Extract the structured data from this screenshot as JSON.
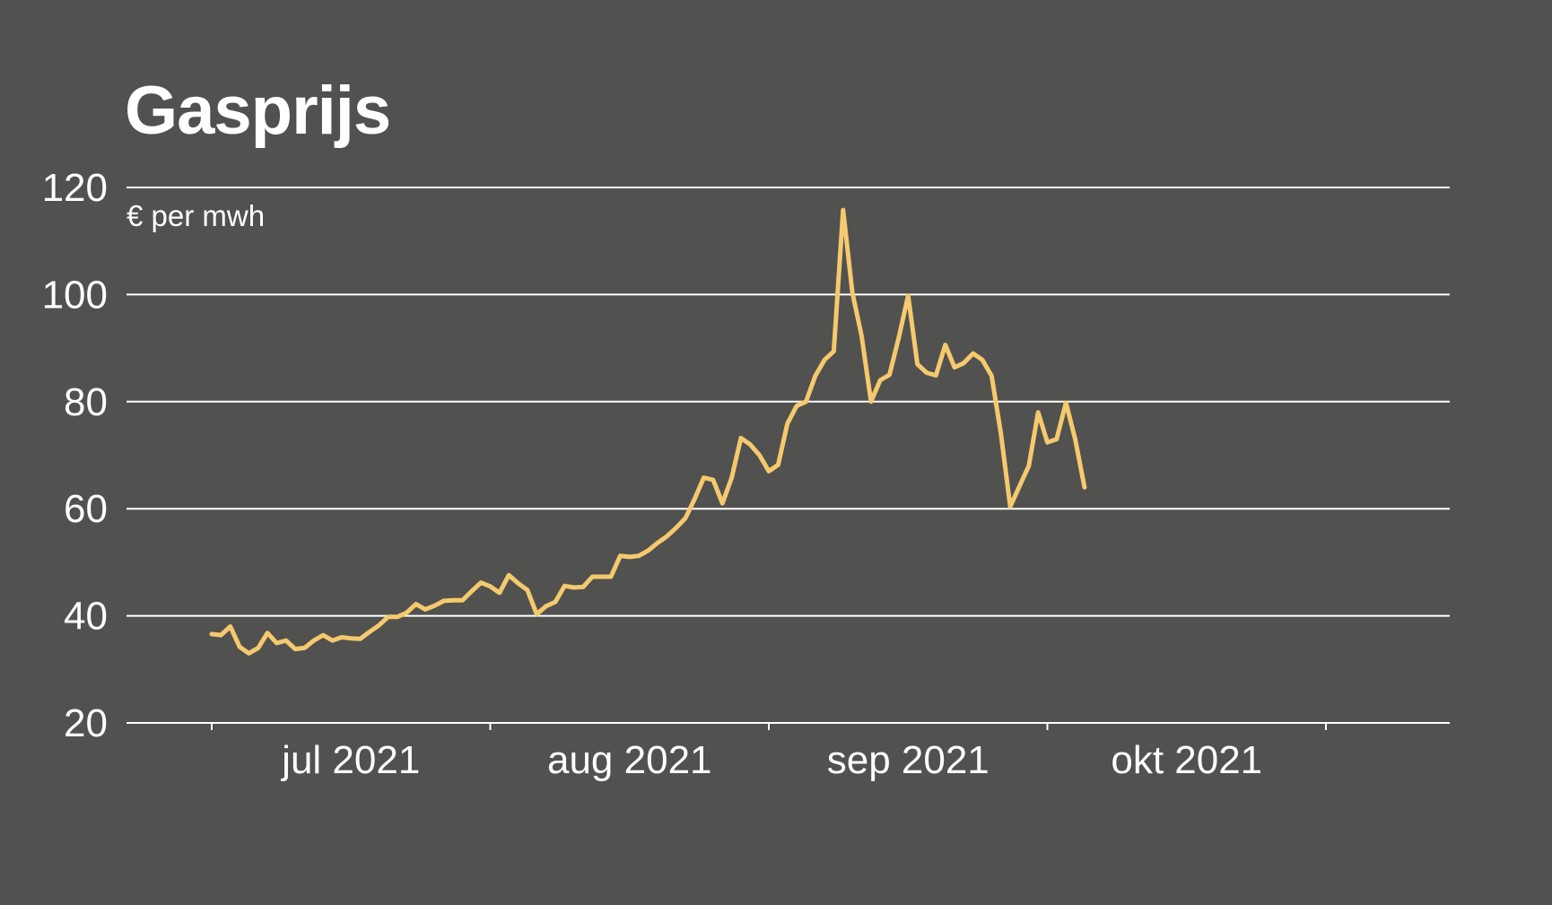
{
  "chart_data": {
    "type": "line",
    "title": "Gasprijs",
    "unit_label": "€ per mwh",
    "xlabel": "",
    "ylabel": "",
    "ylim": [
      20,
      120
    ],
    "yticks": [
      20,
      40,
      60,
      80,
      100,
      120
    ],
    "grid": true,
    "x_range": [
      "2021-06-17",
      "2021-10-25"
    ],
    "xticks": [
      {
        "date": "2021-06-17",
        "label": ""
      },
      {
        "date": "2021-07-17",
        "label": "jul 2021"
      },
      {
        "date": "2021-08-16",
        "label": "aug 2021"
      },
      {
        "date": "2021-09-15",
        "label": "sep 2021"
      },
      {
        "date": "2021-10-15",
        "label": "okt 2021"
      }
    ],
    "colors": {
      "background": "#51514f",
      "series": "#f5c96e",
      "grid": "#ffffff",
      "text": "#ffffff"
    },
    "series": [
      {
        "name": "",
        "points": [
          [
            "2021-06-17",
            36.6
          ],
          [
            "2021-06-18",
            36.4
          ],
          [
            "2021-06-19",
            38.0
          ],
          [
            "2021-06-20",
            34.2
          ],
          [
            "2021-06-21",
            33.0
          ],
          [
            "2021-06-22",
            34.0
          ],
          [
            "2021-06-23",
            36.8
          ],
          [
            "2021-06-24",
            34.9
          ],
          [
            "2021-06-25",
            35.4
          ],
          [
            "2021-06-26",
            33.8
          ],
          [
            "2021-06-27",
            34.0
          ],
          [
            "2021-06-28",
            35.4
          ],
          [
            "2021-06-29",
            36.4
          ],
          [
            "2021-06-30",
            35.4
          ],
          [
            "2021-07-01",
            36.0
          ],
          [
            "2021-07-02",
            35.8
          ],
          [
            "2021-07-03",
            35.7
          ],
          [
            "2021-07-04",
            37.0
          ],
          [
            "2021-07-05",
            38.2
          ],
          [
            "2021-07-06",
            39.8
          ],
          [
            "2021-07-07",
            39.8
          ],
          [
            "2021-07-08",
            40.6
          ],
          [
            "2021-07-09",
            42.2
          ],
          [
            "2021-07-10",
            41.2
          ],
          [
            "2021-07-11",
            41.9
          ],
          [
            "2021-07-12",
            42.8
          ],
          [
            "2021-07-13",
            42.9
          ],
          [
            "2021-07-14",
            42.9
          ],
          [
            "2021-07-15",
            44.6
          ],
          [
            "2021-07-16",
            46.2
          ],
          [
            "2021-07-17",
            45.5
          ],
          [
            "2021-07-18",
            44.3
          ],
          [
            "2021-07-19",
            47.6
          ],
          [
            "2021-07-20",
            46.1
          ],
          [
            "2021-07-21",
            44.8
          ],
          [
            "2021-07-22",
            40.3
          ],
          [
            "2021-07-23",
            41.8
          ],
          [
            "2021-07-24",
            42.6
          ],
          [
            "2021-07-25",
            45.6
          ],
          [
            "2021-07-26",
            45.3
          ],
          [
            "2021-07-27",
            45.4
          ],
          [
            "2021-07-28",
            47.3
          ],
          [
            "2021-07-29",
            47.3
          ],
          [
            "2021-07-30",
            47.3
          ],
          [
            "2021-07-31",
            51.2
          ],
          [
            "2021-08-01",
            51.0
          ],
          [
            "2021-08-02",
            51.2
          ],
          [
            "2021-08-03",
            52.2
          ],
          [
            "2021-08-04",
            53.6
          ],
          [
            "2021-08-05",
            54.8
          ],
          [
            "2021-08-06",
            56.4
          ],
          [
            "2021-08-07",
            58.2
          ],
          [
            "2021-08-08",
            61.8
          ],
          [
            "2021-08-09",
            65.8
          ],
          [
            "2021-08-10",
            65.4
          ],
          [
            "2021-08-11",
            61.0
          ],
          [
            "2021-08-12",
            65.8
          ],
          [
            "2021-08-13",
            73.2
          ],
          [
            "2021-08-14",
            72.0
          ],
          [
            "2021-08-15",
            70.0
          ],
          [
            "2021-08-16",
            67.0
          ],
          [
            "2021-08-17",
            68.2
          ],
          [
            "2021-08-18",
            75.9
          ],
          [
            "2021-08-19",
            79.2
          ],
          [
            "2021-08-20",
            80.0
          ],
          [
            "2021-08-21",
            84.8
          ],
          [
            "2021-08-22",
            87.8
          ],
          [
            "2021-08-23",
            89.4
          ],
          [
            "2021-08-24",
            115.8
          ],
          [
            "2021-08-25",
            100.4
          ],
          [
            "2021-08-26",
            92.2
          ],
          [
            "2021-08-27",
            80.0
          ],
          [
            "2021-08-28",
            84.0
          ],
          [
            "2021-08-29",
            85.0
          ],
          [
            "2021-08-30",
            92.0
          ],
          [
            "2021-08-31",
            99.8
          ],
          [
            "2021-09-01",
            87.0
          ],
          [
            "2021-09-02",
            85.4
          ],
          [
            "2021-09-03",
            84.9
          ],
          [
            "2021-09-04",
            90.6
          ],
          [
            "2021-09-05",
            86.4
          ],
          [
            "2021-09-06",
            87.2
          ],
          [
            "2021-09-07",
            89.0
          ],
          [
            "2021-09-08",
            87.8
          ],
          [
            "2021-09-09",
            84.8
          ],
          [
            "2021-09-10",
            73.9
          ],
          [
            "2021-09-11",
            60.4
          ],
          [
            "2021-09-12",
            64.2
          ],
          [
            "2021-09-13",
            68.0
          ],
          [
            "2021-09-14",
            78.0
          ],
          [
            "2021-09-15",
            72.4
          ],
          [
            "2021-09-16",
            73.0
          ],
          [
            "2021-09-17",
            79.8
          ],
          [
            "2021-09-18",
            73.0
          ],
          [
            "2021-09-19",
            64.0
          ]
        ]
      }
    ]
  }
}
